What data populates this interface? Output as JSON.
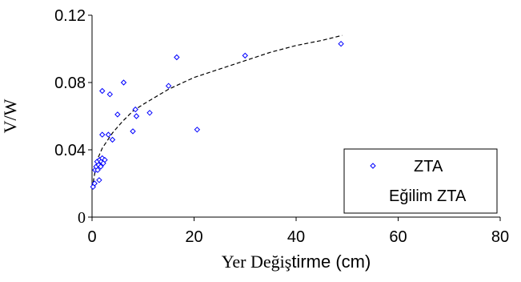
{
  "chart_data": {
    "type": "scatter",
    "xlabel_serif": "Yer Değiş",
    "xlabel_sans": "tirme (cm)",
    "ylabel": "V/W",
    "xlim": [
      0,
      80
    ],
    "ylim": [
      0,
      0.12
    ],
    "x_ticks": [
      "0",
      "20",
      "40",
      "60",
      "80"
    ],
    "y_ticks": [
      "0",
      "0.04",
      "0.08",
      "0.12"
    ],
    "grid": false,
    "legend_position": "bottom-right",
    "series": [
      {
        "name": "ZTA",
        "kind": "markers",
        "marker": "diamond",
        "color": "#0000ff",
        "points": [
          [
            0.2,
            0.018
          ],
          [
            0.5,
            0.02
          ],
          [
            0.6,
            0.028
          ],
          [
            0.8,
            0.03
          ],
          [
            1.0,
            0.033
          ],
          [
            1.1,
            0.028
          ],
          [
            1.3,
            0.031
          ],
          [
            1.5,
            0.034
          ],
          [
            1.7,
            0.03
          ],
          [
            1.8,
            0.033
          ],
          [
            2.0,
            0.035
          ],
          [
            2.2,
            0.032
          ],
          [
            2.5,
            0.034
          ],
          [
            1.4,
            0.022
          ],
          [
            2.0,
            0.075
          ],
          [
            2.0,
            0.049
          ],
          [
            3.2,
            0.049
          ],
          [
            3.5,
            0.073
          ],
          [
            4.0,
            0.046
          ],
          [
            5.0,
            0.061
          ],
          [
            6.2,
            0.08
          ],
          [
            8.0,
            0.051
          ],
          [
            8.5,
            0.064
          ],
          [
            8.7,
            0.06
          ],
          [
            11.3,
            0.062
          ],
          [
            15.0,
            0.078
          ],
          [
            16.6,
            0.095
          ],
          [
            20.6,
            0.052
          ],
          [
            30.0,
            0.096
          ],
          [
            48.8,
            0.103
          ]
        ]
      },
      {
        "name": "Eğilim ZTA",
        "kind": "trendline",
        "style": "dashed",
        "color": "#000000",
        "points": [
          [
            0,
            0.017
          ],
          [
            1,
            0.034
          ],
          [
            2,
            0.041
          ],
          [
            4,
            0.05
          ],
          [
            6,
            0.057
          ],
          [
            8,
            0.063
          ],
          [
            10,
            0.067
          ],
          [
            15,
            0.076
          ],
          [
            20,
            0.083
          ],
          [
            25,
            0.088
          ],
          [
            30,
            0.093
          ],
          [
            35,
            0.098
          ],
          [
            40,
            0.102
          ],
          [
            45,
            0.105
          ],
          [
            49,
            0.108
          ]
        ]
      }
    ]
  }
}
